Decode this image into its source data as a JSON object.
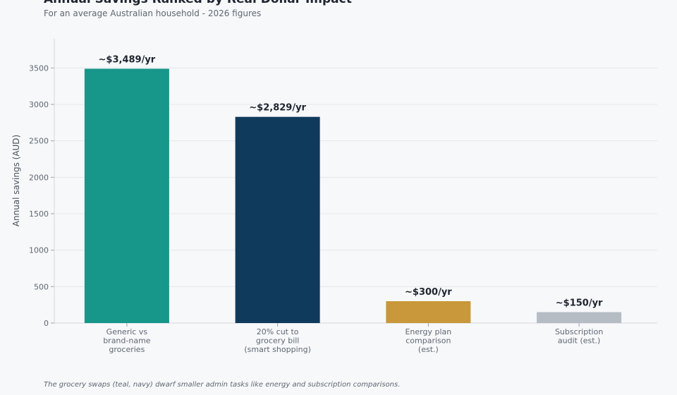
{
  "chart_data": {
    "type": "bar",
    "title": "Annual Savings Ranked by Real Dollar Impact",
    "subtitle": "For an average Australian household - 2026 figures",
    "xlabel": "",
    "ylabel": "Annual savings (AUD)",
    "ylim": [
      0,
      3900
    ],
    "yticks": [
      0,
      500,
      1000,
      1500,
      2000,
      2500,
      3000,
      3500
    ],
    "grid": true,
    "categories": [
      [
        "Generic vs",
        "brand-name",
        "groceries"
      ],
      [
        "20% cut to",
        "grocery bill",
        "(smart shopping)"
      ],
      [
        "Energy plan",
        "comparison",
        "(est.)"
      ],
      [
        "Subscription",
        "audit (est.)"
      ]
    ],
    "values": [
      3489,
      2829,
      300,
      150
    ],
    "data_labels": [
      "~$3,489/yr",
      "~$2,829/yr",
      "~$300/yr",
      "~$150/yr"
    ],
    "colors": [
      "#17968a",
      "#103a5c",
      "#c9983a",
      "#b5bcc4"
    ],
    "caption": "The grocery swaps (teal, navy) dwarf smaller admin tasks like energy and subscription comparisons."
  }
}
